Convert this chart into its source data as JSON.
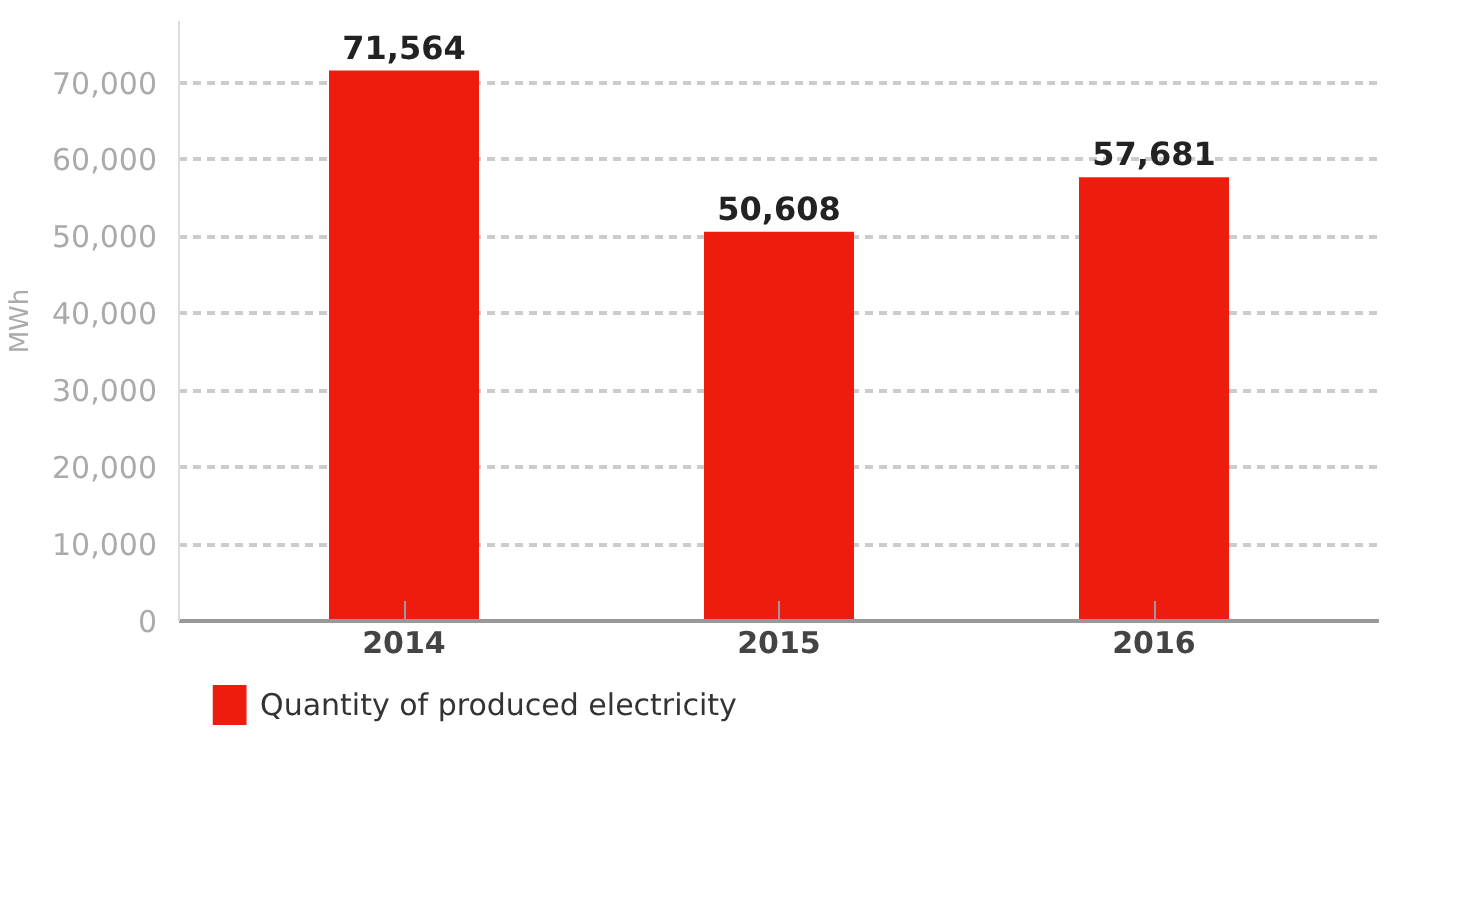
{
  "chart_data": {
    "type": "bar",
    "ylabel": "MWh",
    "categories": [
      "2014",
      "2015",
      "2016"
    ],
    "series": [
      {
        "name": "Quantity of produced electricity",
        "color": "#ee1c0e",
        "values": [
          71564,
          50608,
          57681
        ]
      }
    ],
    "ylim": [
      0,
      78000
    ],
    "yticks": [
      {
        "value": 0,
        "label": "0"
      },
      {
        "value": 10000,
        "label": "10,000"
      },
      {
        "value": 20000,
        "label": "20,000"
      },
      {
        "value": 30000,
        "label": "30,000"
      },
      {
        "value": 40000,
        "label": "40,000"
      },
      {
        "value": 50000,
        "label": "50,000"
      },
      {
        "value": 60000,
        "label": "60,000"
      },
      {
        "value": 70000,
        "label": "70,000"
      }
    ],
    "value_labels": [
      "71,564",
      "50,608",
      "57,681"
    ],
    "grid": "y",
    "legend": "bottom"
  }
}
